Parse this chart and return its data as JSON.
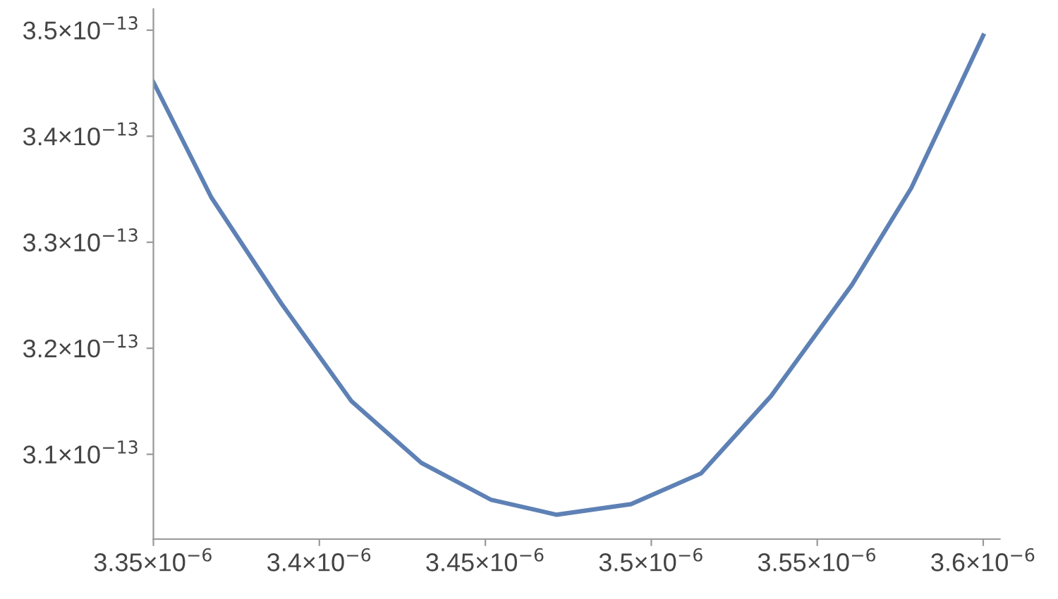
{
  "chart_data": {
    "type": "line",
    "x": [
      3.35e-06,
      3.3675e-06,
      3.3886e-06,
      3.4097e-06,
      3.4307e-06,
      3.4518e-06,
      3.4715e-06,
      3.4939e-06,
      3.515e-06,
      3.5361e-06,
      3.5605e-06,
      3.5783e-06,
      3.5922e-06,
      3.6e-06
    ],
    "series": [
      {
        "color": "#5e81b5",
        "values": [
          3.451e-13,
          3.342e-13,
          3.242e-13,
          3.15e-13,
          3.092e-13,
          3.057e-13,
          3.043e-13,
          3.053e-13,
          3.082e-13,
          3.155e-13,
          3.26e-13,
          3.351e-13,
          3.443e-13,
          3.495e-13
        ]
      }
    ],
    "xlim": [
      3.35e-06,
      3.605e-06
    ],
    "ylim": [
      3.02e-13,
      3.52e-13
    ],
    "xticks": [
      {
        "value": 3.35e-06,
        "label": "3.35×10$^{−6}$"
      },
      {
        "value": 3.4e-06,
        "label": "3.4×10$^{−6}$"
      },
      {
        "value": 3.45e-06,
        "label": "3.45×10$^{−6}$"
      },
      {
        "value": 3.5e-06,
        "label": "3.5×10$^{−6}$"
      },
      {
        "value": 3.55e-06,
        "label": "3.55×10$^{−6}$"
      },
      {
        "value": 3.6e-06,
        "label": "3.6×10$^{−6}$"
      }
    ],
    "yticks": [
      {
        "value": 3.1e-13,
        "label": "3.1×10$^{−13}$"
      },
      {
        "value": 3.2e-13,
        "label": "3.2×10$^{−13}$"
      },
      {
        "value": 3.3e-13,
        "label": "3.3×10$^{−13}$"
      },
      {
        "value": 3.4e-13,
        "label": "3.4×10$^{−13}$"
      },
      {
        "value": 3.5e-13,
        "label": "3.5×10$^{−13}$"
      }
    ],
    "grid": false,
    "marker": "none",
    "line_style": "solid"
  }
}
